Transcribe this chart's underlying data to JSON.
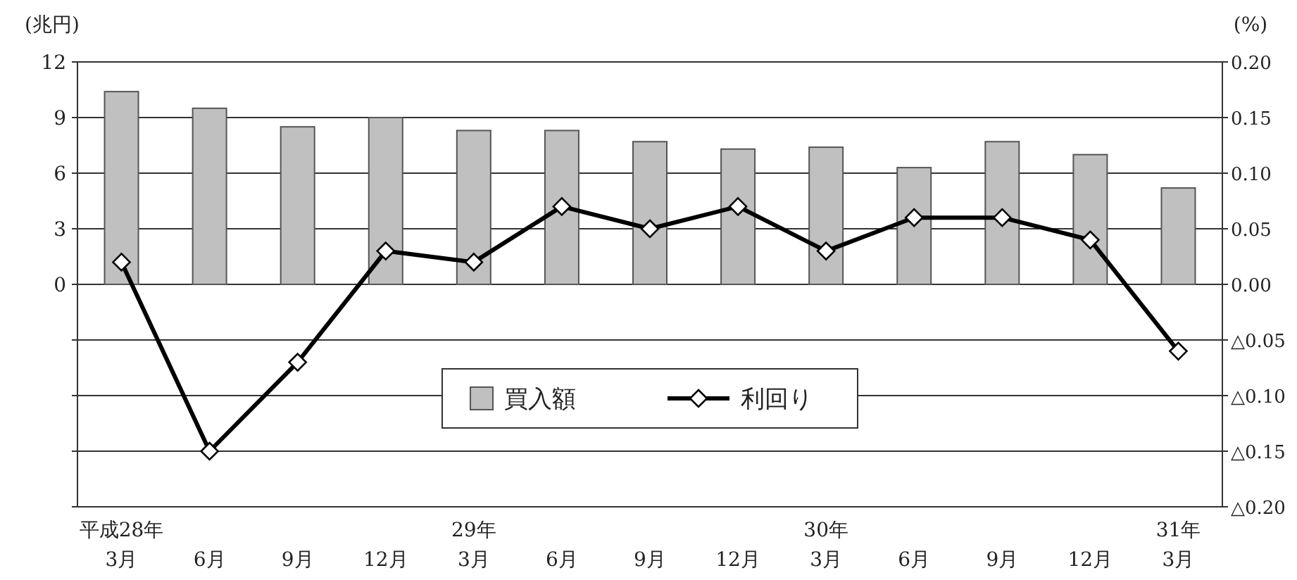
{
  "chart_data": {
    "type": "bar",
    "ylabel": "(兆円)",
    "y2label": "(%)",
    "categories": [
      "平成28年\n3月",
      "6月",
      "9月",
      "12月",
      "29年\n3月",
      "6月",
      "9月",
      "12月",
      "30年\n3月",
      "6月",
      "9月",
      "12月",
      "31年\n3月"
    ],
    "series": [
      {
        "name": "買入額",
        "color": "#c0c0c0",
        "values": [
          10.4,
          9.5,
          8.5,
          9.0,
          8.3,
          8.3,
          7.7,
          7.3,
          7.4,
          6.3,
          7.7,
          7.0,
          5.2
        ]
      },
      {
        "name": "利回り",
        "type": "line",
        "axis": "y2",
        "color": "#000000",
        "marker": "diamond",
        "values": [
          0.02,
          -0.15,
          -0.07,
          0.03,
          0.02,
          0.07,
          0.05,
          0.07,
          0.03,
          0.06,
          0.06,
          0.04,
          -0.06
        ]
      }
    ],
    "ylim": [
      -12,
      12
    ],
    "yticks": [
      {
        "value": -12,
        "label": null
      },
      {
        "value": -9,
        "label": null
      },
      {
        "value": -6,
        "label": null
      },
      {
        "value": -3,
        "label": null
      },
      0,
      3,
      6,
      9,
      12
    ],
    "y2lim": [
      -0.2,
      0.2
    ],
    "y2ticks": [
      {
        "value": -0.2,
        "label": "△0.20"
      },
      {
        "value": -0.15,
        "label": "△0.15"
      },
      {
        "value": -0.1,
        "label": "△0.10"
      },
      {
        "value": -0.05,
        "label": "△0.05"
      },
      {
        "value": 0,
        "label": "0.00"
      },
      {
        "value": 0.05,
        "label": "0.05"
      },
      {
        "value": 0.1,
        "label": "0.10"
      },
      {
        "value": 0.15,
        "label": "0.15"
      },
      {
        "value": 0.2,
        "label": "0.20"
      }
    ],
    "grid": "y",
    "legend": "center"
  }
}
